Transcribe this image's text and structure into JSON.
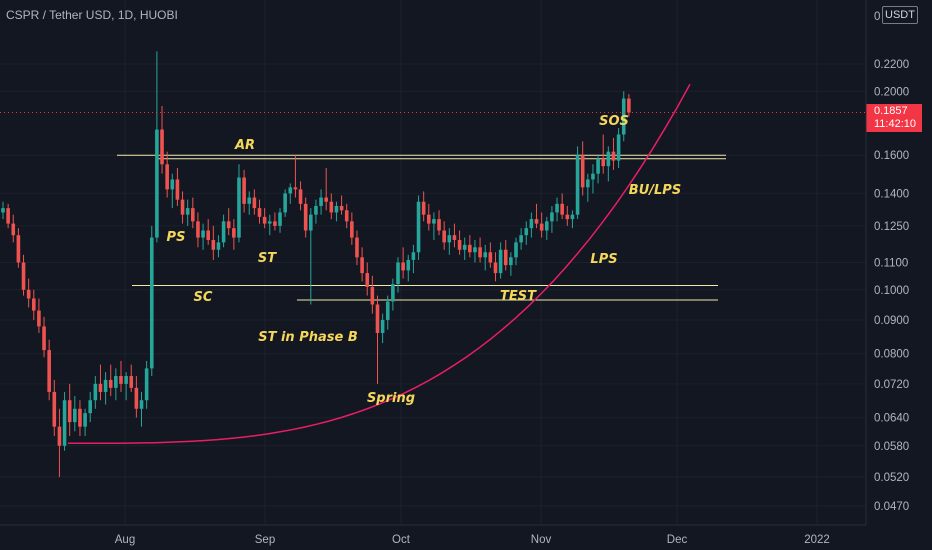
{
  "header": {
    "symbol": "CSPR / Tether USD, 1D, HUOBI"
  },
  "price_axis": {
    "currency": "USDT",
    "top_label": "0"
  },
  "last_price": {
    "value": "0.1857",
    "countdown": "11:42:10",
    "color": "#f23645"
  },
  "colors": {
    "up": "#26a69a",
    "down": "#ef5350",
    "level": "#f5e9a8",
    "curve": "#e91e63",
    "annotation": "#f5d75a"
  },
  "chart_data": {
    "type": "candlestick",
    "scale": "log",
    "y_ticks": [
      0.22,
      0.2,
      0.16,
      0.14,
      0.125,
      0.11,
      0.1,
      0.09,
      0.08,
      0.072,
      0.064,
      0.058,
      0.052,
      0.047
    ],
    "y_tick_labels": [
      "0.2200",
      "0.2000",
      "0.1600",
      "0.1400",
      "0.1250",
      "0.1100",
      "0.1000",
      "0.0900",
      "0.0800",
      "0.0720",
      "0.0640",
      "0.0580",
      "0.0520",
      "0.0470"
    ],
    "x_ticks": [
      "Aug",
      "Sep",
      "Oct",
      "Nov",
      "Dec",
      "2022"
    ],
    "candles": [
      [
        0.131,
        0.136,
        0.128,
        0.133
      ],
      [
        0.133,
        0.135,
        0.124,
        0.126
      ],
      [
        0.126,
        0.13,
        0.118,
        0.121
      ],
      [
        0.121,
        0.124,
        0.108,
        0.11
      ],
      [
        0.11,
        0.113,
        0.098,
        0.1
      ],
      [
        0.1,
        0.104,
        0.094,
        0.097
      ],
      [
        0.097,
        0.1,
        0.09,
        0.093
      ],
      [
        0.093,
        0.097,
        0.086,
        0.088
      ],
      [
        0.088,
        0.091,
        0.079,
        0.081
      ],
      [
        0.081,
        0.084,
        0.068,
        0.07
      ],
      [
        0.07,
        0.073,
        0.06,
        0.062
      ],
      [
        0.062,
        0.066,
        0.052,
        0.058
      ],
      [
        0.058,
        0.07,
        0.057,
        0.068
      ],
      [
        0.068,
        0.072,
        0.06,
        0.063
      ],
      [
        0.063,
        0.069,
        0.061,
        0.066
      ],
      [
        0.066,
        0.068,
        0.06,
        0.062
      ],
      [
        0.062,
        0.066,
        0.06,
        0.065
      ],
      [
        0.065,
        0.07,
        0.063,
        0.068
      ],
      [
        0.068,
        0.074,
        0.066,
        0.072
      ],
      [
        0.072,
        0.077,
        0.068,
        0.07
      ],
      [
        0.07,
        0.075,
        0.067,
        0.073
      ],
      [
        0.073,
        0.077,
        0.069,
        0.071
      ],
      [
        0.071,
        0.076,
        0.068,
        0.074
      ],
      [
        0.074,
        0.078,
        0.07,
        0.072
      ],
      [
        0.072,
        0.075,
        0.068,
        0.074
      ],
      [
        0.074,
        0.077,
        0.07,
        0.071
      ],
      [
        0.071,
        0.074,
        0.064,
        0.066
      ],
      [
        0.066,
        0.07,
        0.062,
        0.068
      ],
      [
        0.068,
        0.078,
        0.066,
        0.076
      ],
      [
        0.076,
        0.125,
        0.074,
        0.12
      ],
      [
        0.12,
        0.23,
        0.118,
        0.175
      ],
      [
        0.175,
        0.19,
        0.15,
        0.155
      ],
      [
        0.155,
        0.162,
        0.138,
        0.142
      ],
      [
        0.142,
        0.15,
        0.133,
        0.147
      ],
      [
        0.147,
        0.153,
        0.134,
        0.137
      ],
      [
        0.137,
        0.141,
        0.126,
        0.13
      ],
      [
        0.13,
        0.137,
        0.125,
        0.133
      ],
      [
        0.133,
        0.138,
        0.124,
        0.127
      ],
      [
        0.127,
        0.131,
        0.116,
        0.12
      ],
      [
        0.12,
        0.126,
        0.115,
        0.123
      ],
      [
        0.123,
        0.128,
        0.117,
        0.119
      ],
      [
        0.119,
        0.125,
        0.111,
        0.115
      ],
      [
        0.115,
        0.121,
        0.112,
        0.118
      ],
      [
        0.118,
        0.13,
        0.116,
        0.127
      ],
      [
        0.127,
        0.133,
        0.121,
        0.124
      ],
      [
        0.124,
        0.128,
        0.115,
        0.12
      ],
      [
        0.12,
        0.155,
        0.118,
        0.148
      ],
      [
        0.148,
        0.152,
        0.131,
        0.135
      ],
      [
        0.135,
        0.141,
        0.13,
        0.138
      ],
      [
        0.138,
        0.142,
        0.13,
        0.133
      ],
      [
        0.133,
        0.137,
        0.126,
        0.129
      ],
      [
        0.129,
        0.133,
        0.124,
        0.126
      ],
      [
        0.126,
        0.13,
        0.121,
        0.127
      ],
      [
        0.127,
        0.131,
        0.123,
        0.125
      ],
      [
        0.125,
        0.133,
        0.122,
        0.131
      ],
      [
        0.131,
        0.142,
        0.129,
        0.14
      ],
      [
        0.14,
        0.145,
        0.135,
        0.143
      ],
      [
        0.143,
        0.16,
        0.138,
        0.142
      ],
      [
        0.142,
        0.146,
        0.132,
        0.135
      ],
      [
        0.135,
        0.138,
        0.12,
        0.123
      ],
      [
        0.123,
        0.133,
        0.095,
        0.13
      ],
      [
        0.13,
        0.137,
        0.126,
        0.134
      ],
      [
        0.134,
        0.142,
        0.13,
        0.138
      ],
      [
        0.138,
        0.153,
        0.132,
        0.136
      ],
      [
        0.136,
        0.14,
        0.128,
        0.131
      ],
      [
        0.131,
        0.136,
        0.127,
        0.134
      ],
      [
        0.134,
        0.139,
        0.13,
        0.132
      ],
      [
        0.132,
        0.135,
        0.124,
        0.127
      ],
      [
        0.127,
        0.131,
        0.117,
        0.12
      ],
      [
        0.12,
        0.123,
        0.109,
        0.112
      ],
      [
        0.112,
        0.116,
        0.103,
        0.106
      ],
      [
        0.106,
        0.11,
        0.098,
        0.101
      ],
      [
        0.101,
        0.105,
        0.092,
        0.095
      ],
      [
        0.095,
        0.098,
        0.072,
        0.086
      ],
      [
        0.086,
        0.092,
        0.083,
        0.09
      ],
      [
        0.09,
        0.098,
        0.087,
        0.096
      ],
      [
        0.096,
        0.104,
        0.093,
        0.102
      ],
      [
        0.102,
        0.112,
        0.099,
        0.11
      ],
      [
        0.11,
        0.116,
        0.104,
        0.107
      ],
      [
        0.107,
        0.113,
        0.103,
        0.111
      ],
      [
        0.111,
        0.117,
        0.106,
        0.114
      ],
      [
        0.114,
        0.139,
        0.111,
        0.136
      ],
      [
        0.136,
        0.141,
        0.127,
        0.13
      ],
      [
        0.13,
        0.135,
        0.123,
        0.126
      ],
      [
        0.126,
        0.131,
        0.119,
        0.128
      ],
      [
        0.128,
        0.132,
        0.121,
        0.123
      ],
      [
        0.123,
        0.127,
        0.115,
        0.118
      ],
      [
        0.118,
        0.124,
        0.113,
        0.121
      ],
      [
        0.121,
        0.126,
        0.116,
        0.119
      ],
      [
        0.119,
        0.123,
        0.113,
        0.115
      ],
      [
        0.115,
        0.12,
        0.111,
        0.117
      ],
      [
        0.117,
        0.121,
        0.112,
        0.114
      ],
      [
        0.114,
        0.119,
        0.11,
        0.116
      ],
      [
        0.116,
        0.12,
        0.11,
        0.112
      ],
      [
        0.112,
        0.117,
        0.107,
        0.114
      ],
      [
        0.114,
        0.118,
        0.108,
        0.11
      ],
      [
        0.11,
        0.114,
        0.103,
        0.106
      ],
      [
        0.106,
        0.118,
        0.104,
        0.115
      ],
      [
        0.115,
        0.119,
        0.107,
        0.109
      ],
      [
        0.109,
        0.114,
        0.105,
        0.112
      ],
      [
        0.112,
        0.12,
        0.109,
        0.118
      ],
      [
        0.118,
        0.124,
        0.115,
        0.121
      ],
      [
        0.121,
        0.127,
        0.117,
        0.124
      ],
      [
        0.124,
        0.131,
        0.12,
        0.128
      ],
      [
        0.128,
        0.135,
        0.124,
        0.126
      ],
      [
        0.126,
        0.131,
        0.12,
        0.123
      ],
      [
        0.123,
        0.129,
        0.119,
        0.127
      ],
      [
        0.127,
        0.134,
        0.122,
        0.131
      ],
      [
        0.131,
        0.138,
        0.127,
        0.135
      ],
      [
        0.135,
        0.14,
        0.128,
        0.13
      ],
      [
        0.13,
        0.134,
        0.125,
        0.128
      ],
      [
        0.128,
        0.132,
        0.124,
        0.13
      ],
      [
        0.13,
        0.165,
        0.128,
        0.16
      ],
      [
        0.16,
        0.168,
        0.139,
        0.143
      ],
      [
        0.143,
        0.15,
        0.136,
        0.147
      ],
      [
        0.147,
        0.155,
        0.14,
        0.15
      ],
      [
        0.15,
        0.16,
        0.145,
        0.158
      ],
      [
        0.158,
        0.172,
        0.15,
        0.154
      ],
      [
        0.154,
        0.165,
        0.146,
        0.162
      ],
      [
        0.162,
        0.17,
        0.152,
        0.157
      ],
      [
        0.157,
        0.176,
        0.153,
        0.172
      ],
      [
        0.172,
        0.2,
        0.168,
        0.195
      ],
      [
        0.195,
        0.198,
        0.183,
        0.1857
      ]
    ],
    "levels": [
      {
        "y": 0.16,
        "x_start": 0,
        "x_end": 1
      },
      {
        "y": 0.158,
        "x_start": 0,
        "x_end": 1
      },
      {
        "y": 0.1015,
        "x_start": 0,
        "x_end": 1
      },
      {
        "y": 0.0965,
        "x_start": 0,
        "x_end": 1
      }
    ],
    "annotations": [
      "AR",
      "PS",
      "ST",
      "SC",
      "ST in Phase B",
      "Spring",
      "TEST",
      "SOS",
      "BU/LPS",
      "LPS"
    ],
    "curve": "parabolic"
  }
}
